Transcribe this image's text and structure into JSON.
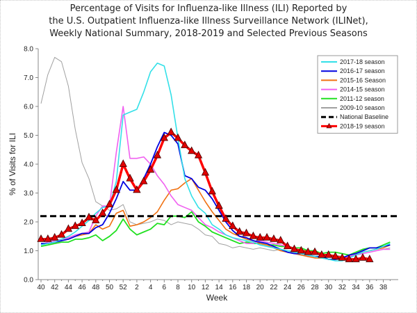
{
  "title_lines": [
    "Percentage of Visits for Influenza-like Illness (ILI) Reported by",
    "the U.S. Outpatient Influenza-like Illness Surveillance Network (ILINet),",
    "Weekly National Summary, 2018-2019 and Selected Previous Seasons"
  ],
  "chart_data": {
    "type": "line",
    "title": "Percentage of Visits for Influenza-like Illness (ILI) Reported by the U.S. Outpatient Influenza-like Illness Surveillance Network (ILINet), Weekly National Summary, 2018-2019 and Selected Previous Seasons",
    "xlabel": "Week",
    "ylabel": "% of Visits for ILI",
    "ylim": [
      0,
      8
    ],
    "yticks": [
      "0.0",
      "1.0",
      "2.0",
      "3.0",
      "4.0",
      "5.0",
      "6.0",
      "7.0",
      "8.0"
    ],
    "x": [
      40,
      41,
      42,
      43,
      44,
      45,
      46,
      47,
      48,
      49,
      50,
      51,
      52,
      1,
      2,
      3,
      4,
      5,
      6,
      7,
      8,
      9,
      10,
      11,
      12,
      13,
      14,
      15,
      16,
      17,
      18,
      19,
      20,
      21,
      22,
      23,
      24,
      25,
      26,
      27,
      28,
      29,
      30,
      31,
      32,
      33,
      34,
      35,
      36,
      37,
      38,
      39
    ],
    "xtick_labels": [
      "40",
      "42",
      "44",
      "46",
      "48",
      "50",
      "52",
      "2",
      "4",
      "6",
      "8",
      "10",
      "12",
      "14",
      "16",
      "18",
      "20",
      "22",
      "24",
      "26",
      "28",
      "30",
      "32",
      "34",
      "36",
      "38"
    ],
    "legend_position": "top-right",
    "series": [
      {
        "name": "2017-18 season",
        "color": "#33e0e8",
        "style": "solid",
        "values": [
          1.2,
          1.25,
          1.3,
          1.4,
          1.5,
          1.65,
          1.85,
          2.05,
          2.3,
          2.5,
          2.55,
          3.4,
          5.7,
          5.8,
          5.9,
          6.5,
          7.2,
          7.5,
          7.4,
          6.4,
          4.9,
          3.5,
          2.9,
          2.5,
          2.3,
          1.9,
          1.75,
          1.55,
          1.45,
          1.4,
          1.35,
          1.3,
          1.2,
          1.15,
          1.1,
          1.05,
          1.0,
          0.95,
          0.9,
          0.85,
          0.8,
          0.75,
          0.7,
          0.65,
          0.65,
          0.75,
          0.85,
          0.95,
          1.0,
          1.05,
          1.15,
          1.25
        ]
      },
      {
        "name": "2016-17 season",
        "color": "#0000e0",
        "style": "solid",
        "values": [
          1.25,
          1.25,
          1.3,
          1.35,
          1.4,
          1.5,
          1.6,
          1.6,
          1.8,
          1.9,
          2.3,
          2.8,
          3.4,
          3.1,
          3.1,
          3.5,
          4.0,
          4.6,
          5.1,
          5.0,
          4.7,
          3.6,
          3.5,
          3.2,
          3.1,
          2.8,
          2.4,
          2.0,
          1.7,
          1.5,
          1.45,
          1.35,
          1.3,
          1.25,
          1.15,
          1.05,
          0.95,
          0.9,
          0.9,
          0.85,
          0.8,
          0.8,
          0.7,
          0.7,
          0.75,
          0.85,
          0.9,
          1.0,
          1.1,
          1.1,
          1.15,
          1.2
        ]
      },
      {
        "name": "2015-16 Season",
        "color": "#f07010",
        "style": "solid",
        "values": [
          1.2,
          1.25,
          1.3,
          1.35,
          1.4,
          1.5,
          1.55,
          1.6,
          1.9,
          1.75,
          1.85,
          2.3,
          2.4,
          1.85,
          1.9,
          2.0,
          2.15,
          2.35,
          2.75,
          3.1,
          3.15,
          3.35,
          3.5,
          3.1,
          2.7,
          2.35,
          2.05,
          1.75,
          1.6,
          1.5,
          1.4,
          1.35,
          1.25,
          1.2,
          1.1,
          1.0,
          0.95,
          0.9,
          0.85,
          0.8,
          0.75,
          0.75,
          0.7,
          0.7,
          0.7,
          0.8,
          0.85,
          0.95,
          1.0,
          1.05,
          1.1,
          1.2
        ]
      },
      {
        "name": "2014-15 season",
        "color": "#f060f0",
        "style": "solid",
        "values": [
          1.2,
          1.3,
          1.35,
          1.4,
          1.45,
          1.55,
          1.6,
          1.65,
          2.2,
          2.55,
          2.55,
          4.4,
          6.0,
          4.2,
          4.2,
          4.25,
          4.0,
          3.6,
          3.3,
          2.9,
          2.6,
          2.5,
          2.4,
          2.15,
          1.9,
          1.8,
          1.65,
          1.55,
          1.45,
          1.35,
          1.25,
          1.25,
          1.35,
          1.3,
          1.25,
          1.2,
          1.15,
          1.1,
          1.0,
          0.95,
          0.9,
          0.85,
          0.8,
          0.75,
          0.75,
          0.8,
          0.85,
          0.9,
          0.95,
          1.0,
          1.05,
          1.05
        ]
      },
      {
        "name": "2011-12 season",
        "color": "#20e020",
        "style": "solid",
        "values": [
          1.15,
          1.2,
          1.25,
          1.3,
          1.3,
          1.4,
          1.4,
          1.45,
          1.55,
          1.35,
          1.5,
          1.7,
          2.1,
          1.75,
          1.55,
          1.65,
          1.75,
          1.95,
          1.9,
          2.2,
          2.2,
          2.15,
          2.35,
          2.0,
          1.85,
          1.65,
          1.55,
          1.45,
          1.35,
          1.25,
          1.3,
          1.25,
          1.25,
          1.2,
          1.2,
          1.15,
          1.15,
          1.1,
          1.1,
          1.0,
          1.0,
          0.9,
          0.95,
          0.95,
          0.9,
          0.85,
          0.95,
          1.05,
          1.1,
          1.1,
          1.2,
          1.3
        ]
      },
      {
        "name": "2009-10 season",
        "color": "#a0a0a0",
        "style": "solid",
        "values": [
          6.1,
          7.1,
          7.7,
          7.55,
          6.7,
          5.2,
          4.05,
          3.5,
          2.7,
          2.55,
          2.4,
          2.45,
          2.6,
          2.0,
          1.9,
          1.95,
          2.0,
          2.1,
          2.05,
          1.9,
          2.0,
          1.95,
          1.9,
          1.75,
          1.55,
          1.5,
          1.25,
          1.2,
          1.1,
          1.15,
          1.1,
          1.05,
          1.1,
          1.05,
          1.0,
          1.05,
          1.0,
          1.0,
          1.0,
          0.95,
          0.9,
          0.85,
          0.85,
          0.85,
          0.8,
          0.8,
          0.85,
          0.9,
          0.95,
          1.0,
          1.05,
          1.1
        ]
      },
      {
        "name": "National Baseline",
        "color": "#000000",
        "style": "dashed",
        "constant": 2.2
      },
      {
        "name": "2018-19 season",
        "color": "#ff0000",
        "style": "solid-marker",
        "marker": "triangle",
        "values": [
          1.4,
          1.4,
          1.45,
          1.55,
          1.75,
          1.85,
          1.95,
          2.15,
          2.05,
          2.3,
          2.6,
          3.1,
          4.0,
          3.5,
          3.1,
          3.4,
          3.8,
          4.3,
          4.9,
          5.1,
          4.9,
          4.65,
          4.45,
          4.3,
          3.7,
          3.05,
          2.55,
          2.1,
          1.85,
          1.65,
          1.6,
          1.5,
          1.45,
          1.45,
          1.4,
          1.35,
          1.15,
          1.05,
          1.0,
          0.95,
          0.95,
          0.85,
          0.85,
          0.8,
          0.75,
          0.7,
          0.7,
          0.75,
          0.7,
          null,
          null,
          null
        ]
      }
    ]
  }
}
